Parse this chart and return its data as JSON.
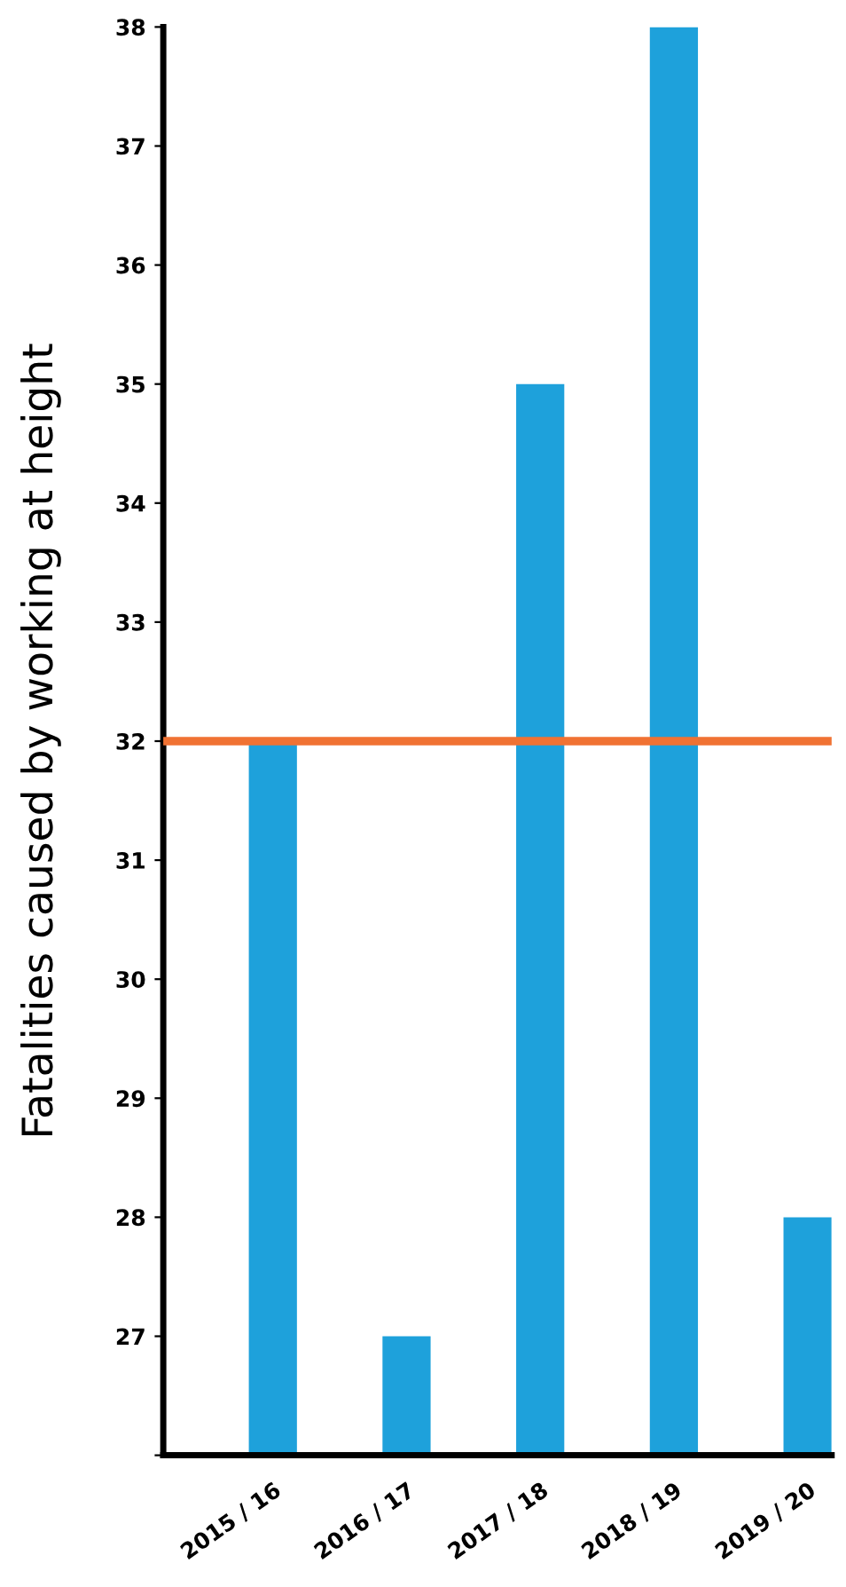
{
  "chart_data": {
    "type": "bar",
    "ylabel": "Fatalities caused by working at height",
    "categories": [
      "2015 / 16",
      "2016 / 17",
      "2017 / 18",
      "2018 / 19",
      "2019 / 20"
    ],
    "values": [
      32,
      27,
      35,
      38,
      28
    ],
    "color": "#1ea1db",
    "ylim": [
      26,
      38
    ],
    "yticks": [
      {
        "value": 26,
        "label": null
      },
      27,
      28,
      29,
      30,
      31,
      32,
      33,
      34,
      35,
      36,
      37,
      38
    ],
    "ref_lines": [
      {
        "axis": "y",
        "value": 32,
        "label": null,
        "color": "#f07233"
      }
    ],
    "grid": false,
    "legend": false
  }
}
